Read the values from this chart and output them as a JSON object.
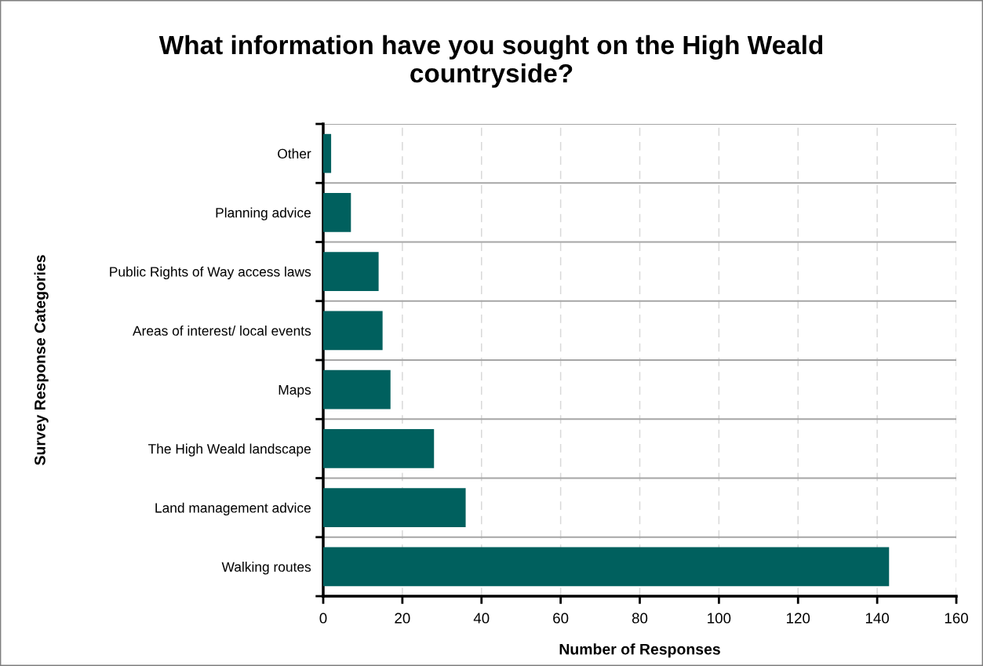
{
  "chart_data": {
    "type": "bar",
    "orientation": "horizontal",
    "title": "What information have you sought on the High Weald countryside?",
    "xlabel": "Number of Responses",
    "ylabel": "Survey Response Categories",
    "categories": [
      "Other",
      "Planning advice",
      "Public Rights of Way access laws",
      "Areas of interest/ local events",
      "Maps",
      "The High Weald landscape",
      "Land management advice",
      "Walking routes"
    ],
    "values": [
      2,
      7,
      14,
      15,
      17,
      28,
      36,
      143
    ],
    "color": "#00605e",
    "xlim": [
      0,
      160
    ],
    "xticks": [
      0,
      20,
      40,
      60,
      80,
      100,
      120,
      140,
      160
    ],
    "grid": true
  }
}
